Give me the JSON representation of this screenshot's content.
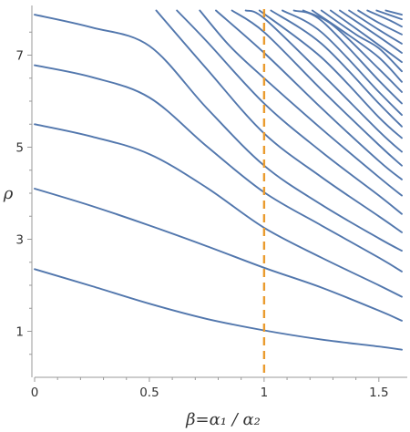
{
  "chart_data": {
    "type": "line",
    "xlabel": "β=α₁ / α₂",
    "ylabel": "ρ",
    "xlim": [
      0,
      1.6
    ],
    "ylim": [
      0,
      8
    ],
    "x_ticks": [
      "0",
      "0.5",
      "1",
      "1.5"
    ],
    "y_ticks": [
      "1",
      "3",
      "5",
      "7"
    ],
    "grid": false,
    "vertical_line": {
      "x": 1.0,
      "style": "dashed",
      "color": "#ea9b2e"
    },
    "line_color": "#5277ad",
    "series": [
      {
        "x": [
          0,
          0.25,
          0.5,
          0.75,
          1.0,
          1.25,
          1.5,
          1.6
        ],
        "values": [
          2.35,
          1.98,
          1.6,
          1.27,
          1.02,
          0.82,
          0.67,
          0.6
        ]
      },
      {
        "x": [
          0,
          0.25,
          0.5,
          0.75,
          1.0,
          1.25,
          1.5,
          1.6
        ],
        "values": [
          4.1,
          3.72,
          3.3,
          2.85,
          2.38,
          1.95,
          1.45,
          1.23
        ]
      },
      {
        "x": [
          0,
          0.25,
          0.5,
          0.75,
          1.0,
          1.25,
          1.5,
          1.6
        ],
        "values": [
          5.5,
          5.23,
          4.85,
          4.12,
          3.25,
          2.6,
          2.0,
          1.75
        ]
      },
      {
        "x": [
          0,
          0.25,
          0.5,
          0.75,
          1.0,
          1.25,
          1.5,
          1.6
        ],
        "values": [
          6.78,
          6.52,
          6.08,
          5.02,
          4.02,
          3.3,
          2.6,
          2.3
        ]
      },
      {
        "x": [
          0,
          0.25,
          0.5,
          0.75,
          1.0,
          1.25,
          1.5,
          1.6
        ],
        "values": [
          7.88,
          7.6,
          7.2,
          5.85,
          4.6,
          3.75,
          3.02,
          2.75
        ]
      },
      {
        "x": [
          0.53,
          0.75,
          1.0,
          1.25,
          1.5,
          1.6
        ],
        "values": [
          7.97,
          6.7,
          5.3,
          4.35,
          3.5,
          3.15
        ]
      },
      {
        "x": [
          0.62,
          0.75,
          1.0,
          1.25,
          1.5,
          1.6
        ],
        "values": [
          7.97,
          7.3,
          5.95,
          4.9,
          3.95,
          3.55
        ]
      },
      {
        "x": [
          0.72,
          0.85,
          1.0,
          1.25,
          1.5,
          1.6
        ],
        "values": [
          7.97,
          7.2,
          6.5,
          5.4,
          4.35,
          3.95
        ]
      },
      {
        "x": [
          0.79,
          1.0,
          1.25,
          1.5,
          1.6
        ],
        "values": [
          7.97,
          7.05,
          5.85,
          4.7,
          4.3
        ]
      },
      {
        "x": [
          0.86,
          1.0,
          1.25,
          1.5,
          1.6
        ],
        "values": [
          7.97,
          7.5,
          6.25,
          5.05,
          4.6
        ]
      },
      {
        "x": [
          0.92,
          1.0,
          1.25,
          1.5,
          1.6
        ],
        "values": [
          7.97,
          7.8,
          6.6,
          5.35,
          4.9
        ]
      },
      {
        "x": [
          0.98,
          1.25,
          1.5,
          1.6
        ],
        "values": [
          7.97,
          6.95,
          5.65,
          5.2
        ]
      },
      {
        "x": [
          1.03,
          1.25,
          1.5,
          1.6
        ],
        "values": [
          7.97,
          7.25,
          5.95,
          5.45
        ]
      },
      {
        "x": [
          1.08,
          1.25,
          1.5,
          1.6
        ],
        "values": [
          7.97,
          7.5,
          6.2,
          5.7
        ]
      },
      {
        "x": [
          1.13,
          1.25,
          1.5,
          1.6
        ],
        "values": [
          7.97,
          7.75,
          6.45,
          5.95
        ]
      },
      {
        "x": [
          1.17,
          1.3,
          1.5,
          1.6
        ],
        "values": [
          7.97,
          7.65,
          6.7,
          6.2
        ]
      },
      {
        "x": [
          1.21,
          1.35,
          1.5,
          1.6
        ],
        "values": [
          7.97,
          7.5,
          6.95,
          6.42
        ]
      },
      {
        "x": [
          1.25,
          1.4,
          1.5,
          1.6
        ],
        "values": [
          7.97,
          7.45,
          7.15,
          6.65
        ]
      },
      {
        "x": [
          1.29,
          1.45,
          1.6
        ],
        "values": [
          7.97,
          7.4,
          6.85
        ]
      },
      {
        "x": [
          1.33,
          1.5,
          1.6
        ],
        "values": [
          7.97,
          7.4,
          7.05
        ]
      },
      {
        "x": [
          1.37,
          1.5,
          1.6
        ],
        "values": [
          7.97,
          7.55,
          7.25
        ]
      },
      {
        "x": [
          1.41,
          1.5,
          1.6
        ],
        "values": [
          7.97,
          7.7,
          7.45
        ]
      },
      {
        "x": [
          1.45,
          1.55,
          1.6
        ],
        "values": [
          7.97,
          7.75,
          7.62
        ]
      },
      {
        "x": [
          1.49,
          1.6
        ],
        "values": [
          7.97,
          7.78
        ]
      },
      {
        "x": [
          1.53,
          1.6
        ],
        "values": [
          7.97,
          7.88
        ]
      }
    ]
  }
}
